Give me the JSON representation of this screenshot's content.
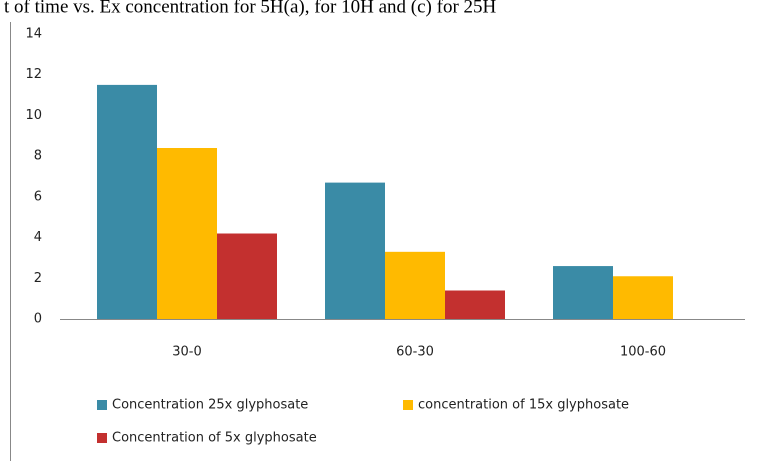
{
  "title": "t of time vs. Ex concentration for 5H(a), for 10H and (c) for 25H",
  "chart_data": {
    "type": "bar",
    "categories": [
      "30-0",
      "60-30",
      "100-60"
    ],
    "series": [
      {
        "name": "Concentration 25x glyphosate",
        "color": "#3a8ba6",
        "values": [
          11.5,
          6.7,
          2.6
        ]
      },
      {
        "name": "concentration of 15x glyphosate",
        "color": "#ffba00",
        "values": [
          8.4,
          3.3,
          2.1
        ]
      },
      {
        "name": "Concentration of 5x glyphosate",
        "color": "#c3302f",
        "values": [
          4.2,
          1.4,
          0
        ]
      }
    ],
    "ylim": [
      0,
      14
    ],
    "yticks": [
      0,
      2,
      4,
      6,
      8,
      10,
      12,
      14
    ],
    "grid": false,
    "legend": "bottom"
  }
}
